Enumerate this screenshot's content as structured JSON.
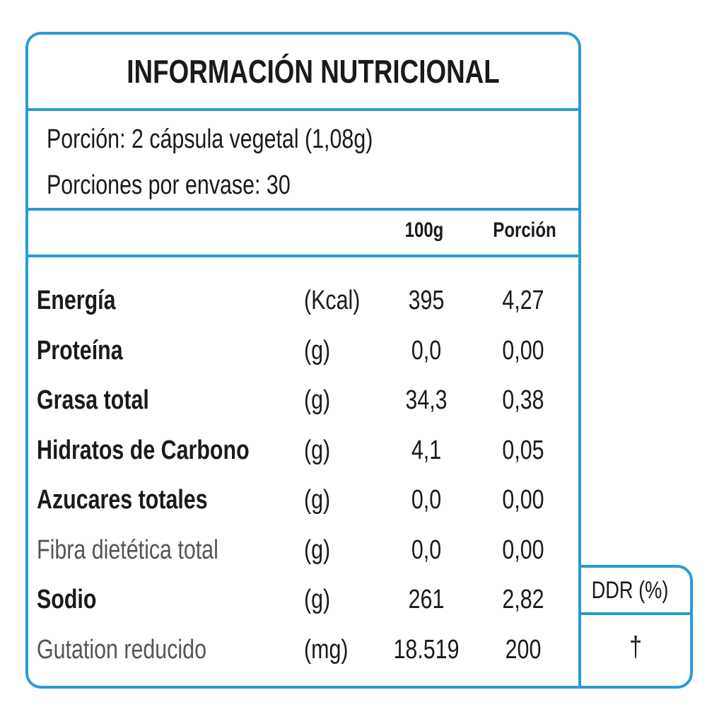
{
  "title": "INFORMACIÓN  NUTRICIONAL",
  "portion": "Porción: 2 cápsula vegetal (1,08g)",
  "servings": "Porciones por envase: 30",
  "headers": {
    "per100": "100g",
    "portion": "Porción",
    "ddr": "DDR (%)"
  },
  "rows": [
    {
      "name": "Energía",
      "unit": "(Kcal)",
      "per100": "395",
      "portion": "4,27",
      "bold": true
    },
    {
      "name": "Proteína",
      "unit": "(g)",
      "per100": "0,0",
      "portion": "0,00",
      "bold": true
    },
    {
      "name": "Grasa total",
      "unit": "(g)",
      "per100": "34,3",
      "portion": "0,38",
      "bold": true
    },
    {
      "name": "Hidratos de Carbono",
      "unit": "(g)",
      "per100": "4,1",
      "portion": "0,05",
      "bold": true
    },
    {
      "name": "Azucares totales",
      "unit": "(g)",
      "per100": "0,0",
      "portion": "0,00",
      "bold": true
    },
    {
      "name": "Fibra dietética total",
      "unit": "(g)",
      "per100": "0,0",
      "portion": "0,00",
      "bold": false
    },
    {
      "name": "Sodio",
      "unit": "(g)",
      "per100": "261",
      "portion": "2,82",
      "bold": true
    },
    {
      "name": "Gutation reducido",
      "unit": "(mg)",
      "per100": "18.519",
      "portion": "200",
      "bold": false
    }
  ],
  "ddr_value": "†",
  "colors": {
    "border": "#2a9ad6",
    "text": "#1a1a1a",
    "light": "#555555"
  }
}
